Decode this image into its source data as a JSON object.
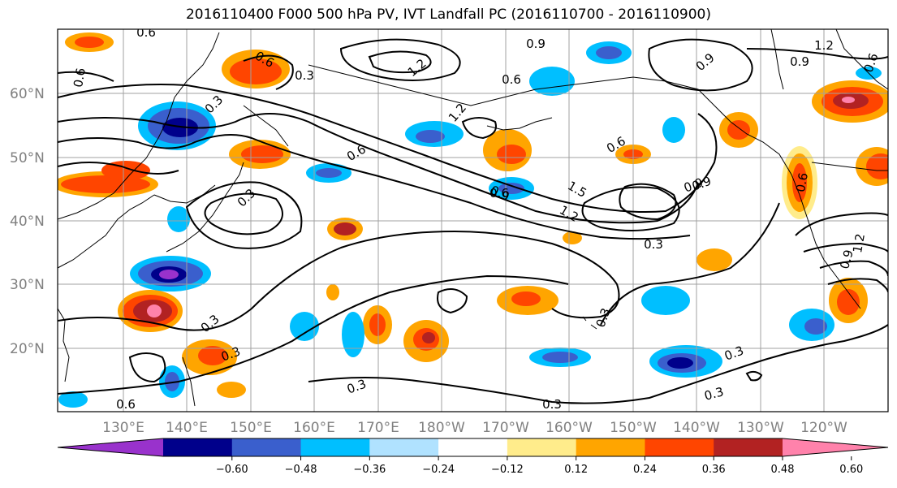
{
  "title": "2016110400 F000 500 hPa PV, IVT Landfall PC (2016110700 - 2016110900)",
  "lat_labels": [
    "60°N",
    "50°N",
    "40°N",
    "30°N",
    "20°N"
  ],
  "lon_labels": [
    "130°E",
    "140°E",
    "150°E",
    "160°E",
    "170°E",
    "180°W",
    "170°W",
    "160°W",
    "150°W",
    "140°W",
    "130°W",
    "120°W"
  ],
  "colorbar": {
    "ticks": [
      "−0.60",
      "−0.48",
      "−0.36",
      "−0.24",
      "−0.12",
      "0.12",
      "0.24",
      "0.36",
      "0.48",
      "0.60"
    ],
    "colors": [
      "#9932cc",
      "#00008b",
      "#3a5fcd",
      "#00bfff",
      "#b0e2ff",
      "#ffffff",
      "#ffec8b",
      "#ffa500",
      "#ff4500",
      "#b22222",
      "#ff82ab"
    ]
  },
  "contour_labels": [
    "0.6",
    "0.6",
    "0.3",
    "0.9",
    "0.6",
    "0.9",
    "1.2",
    "0.6",
    "0.9",
    "1.2",
    "0.3",
    "1.2",
    "0.6",
    "0.3",
    "0.6",
    "0.9",
    "1.5",
    "1.2",
    "0.3",
    "0.9",
    "0.3",
    "0.3",
    "0.3",
    "0.6",
    "0.3",
    "0.3",
    "0.3",
    "0.3",
    "0.6",
    "0.9",
    "1.2",
    "0.6",
    "0.9",
    "0.6"
  ]
}
